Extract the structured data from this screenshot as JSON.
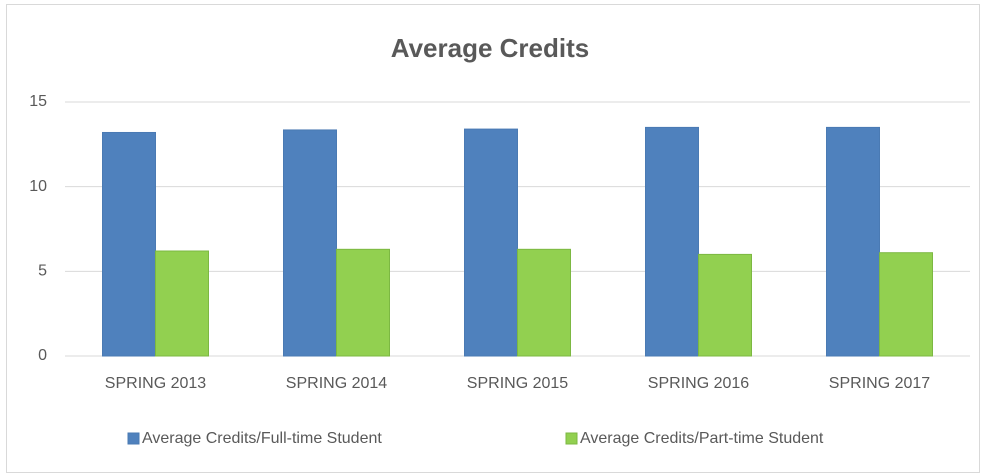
{
  "chart_data": {
    "type": "bar",
    "title": "Average Credits",
    "categories": [
      "SPRING 2013",
      "SPRING 2014",
      "SPRING 2015",
      "SPRING 2016",
      "SPRING 2017"
    ],
    "series": [
      {
        "name": "Average Credits/Full-time Student",
        "color": "#4f81bd",
        "values": [
          13.2,
          13.35,
          13.4,
          13.5,
          13.5
        ]
      },
      {
        "name": "Average Credits/Part-time Student",
        "color": "#92d050",
        "values": [
          6.2,
          6.3,
          6.3,
          6.0,
          6.1
        ]
      }
    ],
    "ylim": [
      0,
      15
    ],
    "yticks": [
      0,
      5,
      10,
      15
    ],
    "grid": true,
    "legend": "bottom"
  }
}
